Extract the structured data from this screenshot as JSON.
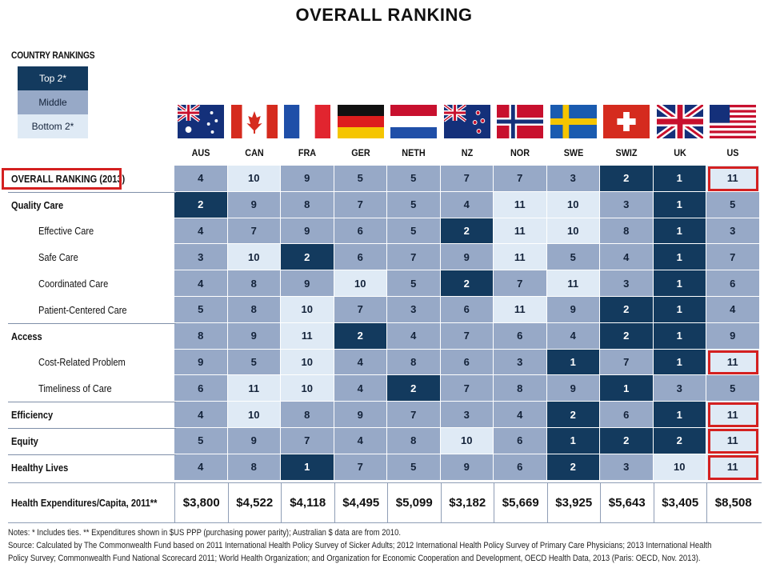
{
  "title": "OVERALL RANKING",
  "legend": {
    "heading": "COUNTRY RANKINGS",
    "items": [
      {
        "label": "Top 2*",
        "key": "top",
        "color": "#133a5e"
      },
      {
        "label": "Middle",
        "key": "mid",
        "color": "#97a9c7"
      },
      {
        "label": "Bottom 2*",
        "key": "bot",
        "color": "#dfeaf5"
      }
    ]
  },
  "chart_data": {
    "type": "table",
    "columns": [
      "AUS",
      "CAN",
      "FRA",
      "GER",
      "NETH",
      "NZ",
      "NOR",
      "SWE",
      "SWIZ",
      "UK",
      "US"
    ],
    "flags": [
      "australia-flag",
      "canada-flag",
      "france-flag",
      "germany-flag",
      "netherlands-flag",
      "new-zealand-flag",
      "norway-flag",
      "sweden-flag",
      "switzerland-flag",
      "uk-flag",
      "us-flag"
    ],
    "rows": [
      {
        "label": "OVERALL RANKING (2013)",
        "style": "bold",
        "values": [
          4,
          10,
          9,
          5,
          5,
          7,
          7,
          3,
          2,
          1,
          11
        ],
        "highlight_us": true,
        "highlight_label": true
      },
      {
        "label": "Quality Care",
        "style": "bold",
        "values": [
          2,
          9,
          8,
          7,
          5,
          4,
          11,
          10,
          3,
          1,
          5
        ]
      },
      {
        "label": "Effective Care",
        "style": "indent",
        "values": [
          4,
          7,
          9,
          6,
          5,
          2,
          11,
          10,
          8,
          1,
          3
        ]
      },
      {
        "label": "Safe Care",
        "style": "indent",
        "values": [
          3,
          10,
          2,
          6,
          7,
          9,
          11,
          5,
          4,
          1,
          7
        ]
      },
      {
        "label": "Coordinated Care",
        "style": "indent",
        "values": [
          4,
          8,
          9,
          10,
          5,
          2,
          7,
          11,
          3,
          1,
          6
        ]
      },
      {
        "label": "Patient-Centered Care",
        "style": "indent",
        "values": [
          5,
          8,
          10,
          7,
          3,
          6,
          11,
          9,
          2,
          1,
          4
        ]
      },
      {
        "label": "Access",
        "style": "bold",
        "values": [
          8,
          9,
          11,
          2,
          4,
          7,
          6,
          4,
          2,
          1,
          9
        ]
      },
      {
        "label": "Cost-Related Problem",
        "style": "indent",
        "values": [
          9,
          5,
          10,
          4,
          8,
          6,
          3,
          1,
          7,
          1,
          11
        ],
        "highlight_us": true
      },
      {
        "label": "Timeliness of Care",
        "style": "indent",
        "values": [
          6,
          11,
          10,
          4,
          2,
          7,
          8,
          9,
          1,
          3,
          5
        ]
      },
      {
        "label": "Efficiency",
        "style": "bold",
        "values": [
          4,
          10,
          8,
          9,
          7,
          3,
          4,
          2,
          6,
          1,
          11
        ],
        "highlight_us": true
      },
      {
        "label": "Equity",
        "style": "bold",
        "values": [
          5,
          9,
          7,
          4,
          8,
          10,
          6,
          1,
          2,
          2,
          11
        ],
        "highlight_us": true
      },
      {
        "label": "Healthy Lives",
        "style": "bold",
        "values": [
          4,
          8,
          1,
          7,
          5,
          9,
          6,
          2,
          3,
          10,
          11
        ],
        "highlight_us": true
      }
    ],
    "shading": [
      [
        "mid",
        "bot",
        "mid",
        "mid",
        "mid",
        "mid",
        "mid",
        "mid",
        "top",
        "top",
        "bot"
      ],
      [
        "top",
        "mid",
        "mid",
        "mid",
        "mid",
        "mid",
        "bot",
        "bot",
        "mid",
        "top",
        "mid"
      ],
      [
        "mid",
        "mid",
        "mid",
        "mid",
        "mid",
        "top",
        "bot",
        "bot",
        "mid",
        "top",
        "mid"
      ],
      [
        "mid",
        "bot",
        "top",
        "mid",
        "mid",
        "mid",
        "bot",
        "mid",
        "mid",
        "top",
        "mid"
      ],
      [
        "mid",
        "mid",
        "mid",
        "bot",
        "mid",
        "top",
        "mid",
        "bot",
        "mid",
        "top",
        "mid"
      ],
      [
        "mid",
        "mid",
        "bot",
        "mid",
        "mid",
        "mid",
        "bot",
        "mid",
        "top",
        "top",
        "mid"
      ],
      [
        "mid",
        "mid",
        "bot",
        "top",
        "mid",
        "mid",
        "mid",
        "mid",
        "top",
        "top",
        "mid"
      ],
      [
        "mid",
        "mid",
        "bot",
        "mid",
        "mid",
        "mid",
        "mid",
        "top",
        "mid",
        "top",
        "bot"
      ],
      [
        "mid",
        "bot",
        "bot",
        "mid",
        "top",
        "mid",
        "mid",
        "mid",
        "top",
        "mid",
        "mid"
      ],
      [
        "mid",
        "bot",
        "mid",
        "mid",
        "mid",
        "mid",
        "mid",
        "top",
        "mid",
        "top",
        "bot"
      ],
      [
        "mid",
        "mid",
        "mid",
        "mid",
        "mid",
        "bot",
        "mid",
        "top",
        "top",
        "top",
        "bot"
      ],
      [
        "mid",
        "mid",
        "top",
        "mid",
        "mid",
        "mid",
        "mid",
        "top",
        "mid",
        "bot",
        "bot"
      ]
    ],
    "expenditures": {
      "label": "Health Expenditures/Capita, 2011**",
      "values": [
        "$3,800",
        "$4,522",
        "$4,118",
        "$4,495",
        "$5,099",
        "$3,182",
        "$5,669",
        "$3,925",
        "$5,643",
        "$3,405",
        "$8,508"
      ]
    }
  },
  "notes": {
    "line1": "Notes: * Includes ties. ** Expenditures shown in $US PPP (purchasing power parity); Australian $ data are from 2010.",
    "line2": "Source: Calculated by The Commonwealth Fund based on 2011 International Health Policy Survey of Sicker Adults; 2012 International Health Policy Survey of Primary Care Physicians; 2013 International Health",
    "line3": "Policy Survey; Commonwealth Fund National Scorecard 2011; World Health Organization; and Organization for Economic Cooperation and Development, OECD Health Data, 2013 (Paris: OECD, Nov. 2013)."
  },
  "colors": {
    "highlight": "#d42020"
  }
}
